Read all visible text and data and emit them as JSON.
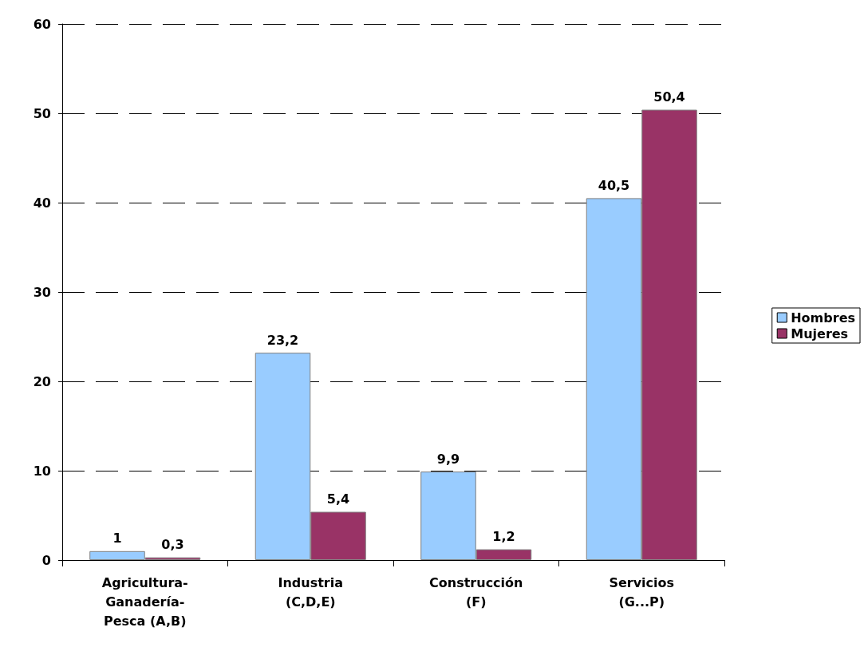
{
  "chart_data": {
    "type": "bar",
    "categories": [
      "Agricultura-\nGanadería-\nPesca (A,B)",
      "Industria\n(C,D,E)",
      "Construcción\n(F)",
      "Servicios\n(G...P)"
    ],
    "series": [
      {
        "name": "Hombres",
        "color": "#99ccff",
        "values": [
          1,
          23.2,
          9.9,
          40.5
        ],
        "value_labels": [
          "1",
          "23,2",
          "9,9",
          "40,5"
        ]
      },
      {
        "name": "Mujeres",
        "color": "#993366",
        "values": [
          0.3,
          5.4,
          1.2,
          50.4
        ],
        "value_labels": [
          "0,3",
          "5,4",
          "1,2",
          "50,4"
        ]
      }
    ],
    "ylim": [
      0,
      60
    ],
    "yticks": [
      0,
      10,
      20,
      30,
      40,
      50,
      60
    ],
    "grid": "y",
    "legend": "right"
  }
}
